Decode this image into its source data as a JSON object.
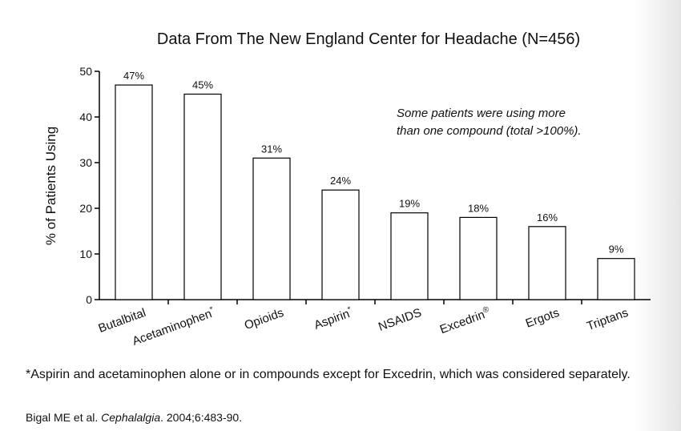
{
  "chart_data": {
    "type": "bar",
    "title": "Data From The New England Center for Headache (N=456)",
    "ylabel": "% of Patients Using",
    "xlabel": "",
    "ylim": [
      0,
      50
    ],
    "yticks": [
      0,
      10,
      20,
      30,
      40,
      50
    ],
    "grid": false,
    "categories": [
      {
        "text": "Butalbital",
        "sup": ""
      },
      {
        "text": "Acetaminophen",
        "sup": "*"
      },
      {
        "text": "Opioids",
        "sup": ""
      },
      {
        "text": "Aspirin",
        "sup": "*"
      },
      {
        "text": "NSAIDS",
        "sup": ""
      },
      {
        "text": "Excedrin",
        "sup": "®"
      },
      {
        "text": "Ergots",
        "sup": ""
      },
      {
        "text": "Triptans",
        "sup": ""
      }
    ],
    "values": [
      47,
      45,
      31,
      24,
      19,
      18,
      16,
      9
    ],
    "data_labels": [
      "47%",
      "45%",
      "31%",
      "24%",
      "19%",
      "18%",
      "16%",
      "9%"
    ],
    "annotation": {
      "line1": "Some patients were using more",
      "line2": "than one compound (total >100%)."
    },
    "colors": {
      "bar_fill": "#ffffff",
      "bar_stroke": "#000000"
    }
  },
  "footnote": "*Aspirin and acetaminophen alone or in compounds except for Excedrin, which  was considered separately.",
  "citation": {
    "authors": "Bigal ME et al. ",
    "journal": "Cephalalgia",
    "details": ". 2004;6:483-90."
  }
}
